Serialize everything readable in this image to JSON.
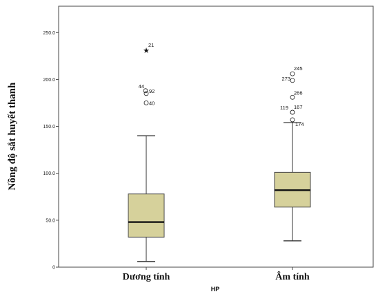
{
  "chart_data": {
    "type": "box",
    "xlabel": "HP",
    "ylabel": "Nồng độ sắt huyết thanh",
    "ylim": [
      0,
      270
    ],
    "yticks": [
      0,
      50,
      100,
      150,
      200,
      250
    ],
    "ytick_labels": [
      "0",
      "50.0",
      "100.0",
      "150.0",
      "200.0",
      "250.0"
    ],
    "categories": [
      "Dương tính",
      "Âm tính"
    ],
    "box_color": "#d6d19b",
    "boxes": [
      {
        "category": "Dương tính",
        "whisker_low": 6,
        "q1": 32,
        "median": 48,
        "q3": 78,
        "whisker_high": 140,
        "outliers": [
          {
            "label": "21",
            "value": 231,
            "marker": "star"
          },
          {
            "label": "44",
            "value": 188,
            "marker": "circle"
          },
          {
            "label": "92",
            "value": 185,
            "marker": "circle"
          },
          {
            "label": "40",
            "value": 175,
            "marker": "circle"
          }
        ]
      },
      {
        "category": "Âm tính",
        "whisker_low": 28,
        "q1": 64,
        "median": 82,
        "q3": 101,
        "whisker_high": 154,
        "outliers": [
          {
            "label": "245",
            "value": 206,
            "marker": "circle"
          },
          {
            "label": "273",
            "value": 199,
            "marker": "circle"
          },
          {
            "label": "266",
            "value": 181,
            "marker": "circle"
          },
          {
            "label": "119",
            "value": 165,
            "marker": "circle"
          },
          {
            "label": "167",
            "value": 165,
            "marker": "circle"
          },
          {
            "label": "174",
            "value": 157,
            "marker": "circle"
          }
        ]
      }
    ]
  }
}
